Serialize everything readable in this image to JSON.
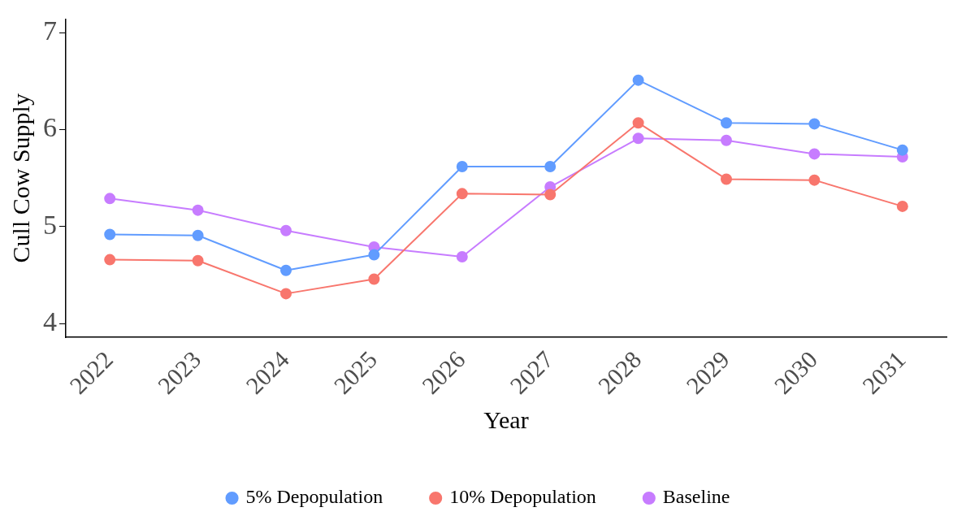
{
  "chart_data": {
    "type": "line",
    "xlabel": "Year",
    "ylabel": "Cull Cow Supply",
    "categories": [
      "2022",
      "2023",
      "2024",
      "2025",
      "2026",
      "2027",
      "2028",
      "2029",
      "2030",
      "2031"
    ],
    "series": [
      {
        "name": "5% Depopulation",
        "color": "#619cff",
        "values": [
          4.92,
          4.91,
          4.55,
          4.71,
          5.62,
          5.62,
          6.51,
          6.07,
          6.06,
          5.79
        ]
      },
      {
        "name": "10% Depopulation",
        "color": "#f8766d",
        "values": [
          4.66,
          4.65,
          4.31,
          4.46,
          5.34,
          5.33,
          6.07,
          5.49,
          5.48,
          5.21
        ]
      },
      {
        "name": "Baseline",
        "color": "#c77cff",
        "values": [
          5.29,
          5.17,
          4.96,
          4.79,
          4.69,
          5.41,
          5.91,
          5.89,
          5.75,
          5.72
        ]
      }
    ],
    "ylim": [
      3.86,
      7.14
    ],
    "yticks": [
      4,
      5,
      6,
      7
    ],
    "grid": false,
    "legend": "bottom",
    "marker": "circle",
    "line_style": "solid"
  }
}
